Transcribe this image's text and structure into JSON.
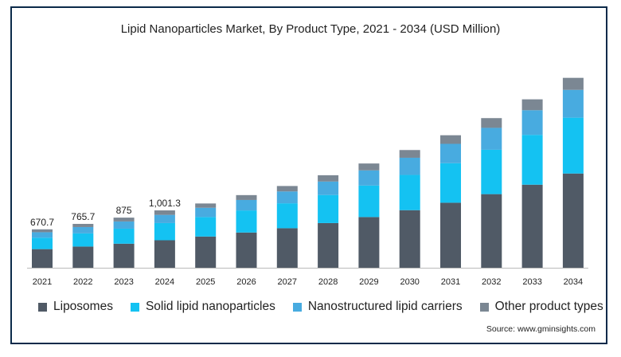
{
  "chart_data": {
    "type": "bar",
    "stacked": true,
    "title": "Lipid Nanoparticles Market, By Product Type, 2021 - 2034 (USD Million)",
    "categories": [
      "2021",
      "2022",
      "2023",
      "2024",
      "2025",
      "2026",
      "2027",
      "2028",
      "2029",
      "2030",
      "2031",
      "2032",
      "2033",
      "2034"
    ],
    "total_labels": [
      "670.7",
      "765.7",
      "875",
      "1,001.3",
      "",
      "",
      "",
      "",
      "",
      "",
      "",
      "",
      "",
      ""
    ],
    "series": [
      {
        "name": "Liposomes",
        "color": "#505a66",
        "values": [
          325,
          370,
          420,
          480,
          545,
          615,
          690,
          780,
          885,
          1005,
          1135,
          1285,
          1450,
          1645
        ]
      },
      {
        "name": "Solid lipid nanoparticles",
        "color": "#14c2f2",
        "values": [
          200,
          230,
          262,
          300,
          340,
          385,
          435,
          490,
          550,
          615,
          690,
          775,
          870,
          975
        ]
      },
      {
        "name": "Nanostructured lipid carriers",
        "color": "#48abe0",
        "values": [
          95,
          110,
          126,
          143,
          162,
          183,
          207,
          235,
          265,
          300,
          338,
          382,
          430,
          485
        ]
      },
      {
        "name": "Other product types",
        "color": "#7b8793",
        "values": [
          50.7,
          55.7,
          67,
          78.3,
          75,
          85,
          95,
          110,
          120,
          135,
          150,
          170,
          190,
          210
        ]
      }
    ],
    "ylim": [
      0,
      3700
    ],
    "legend_position": "bottom",
    "grid": false
  },
  "source": "Source: www.gminsights.com"
}
